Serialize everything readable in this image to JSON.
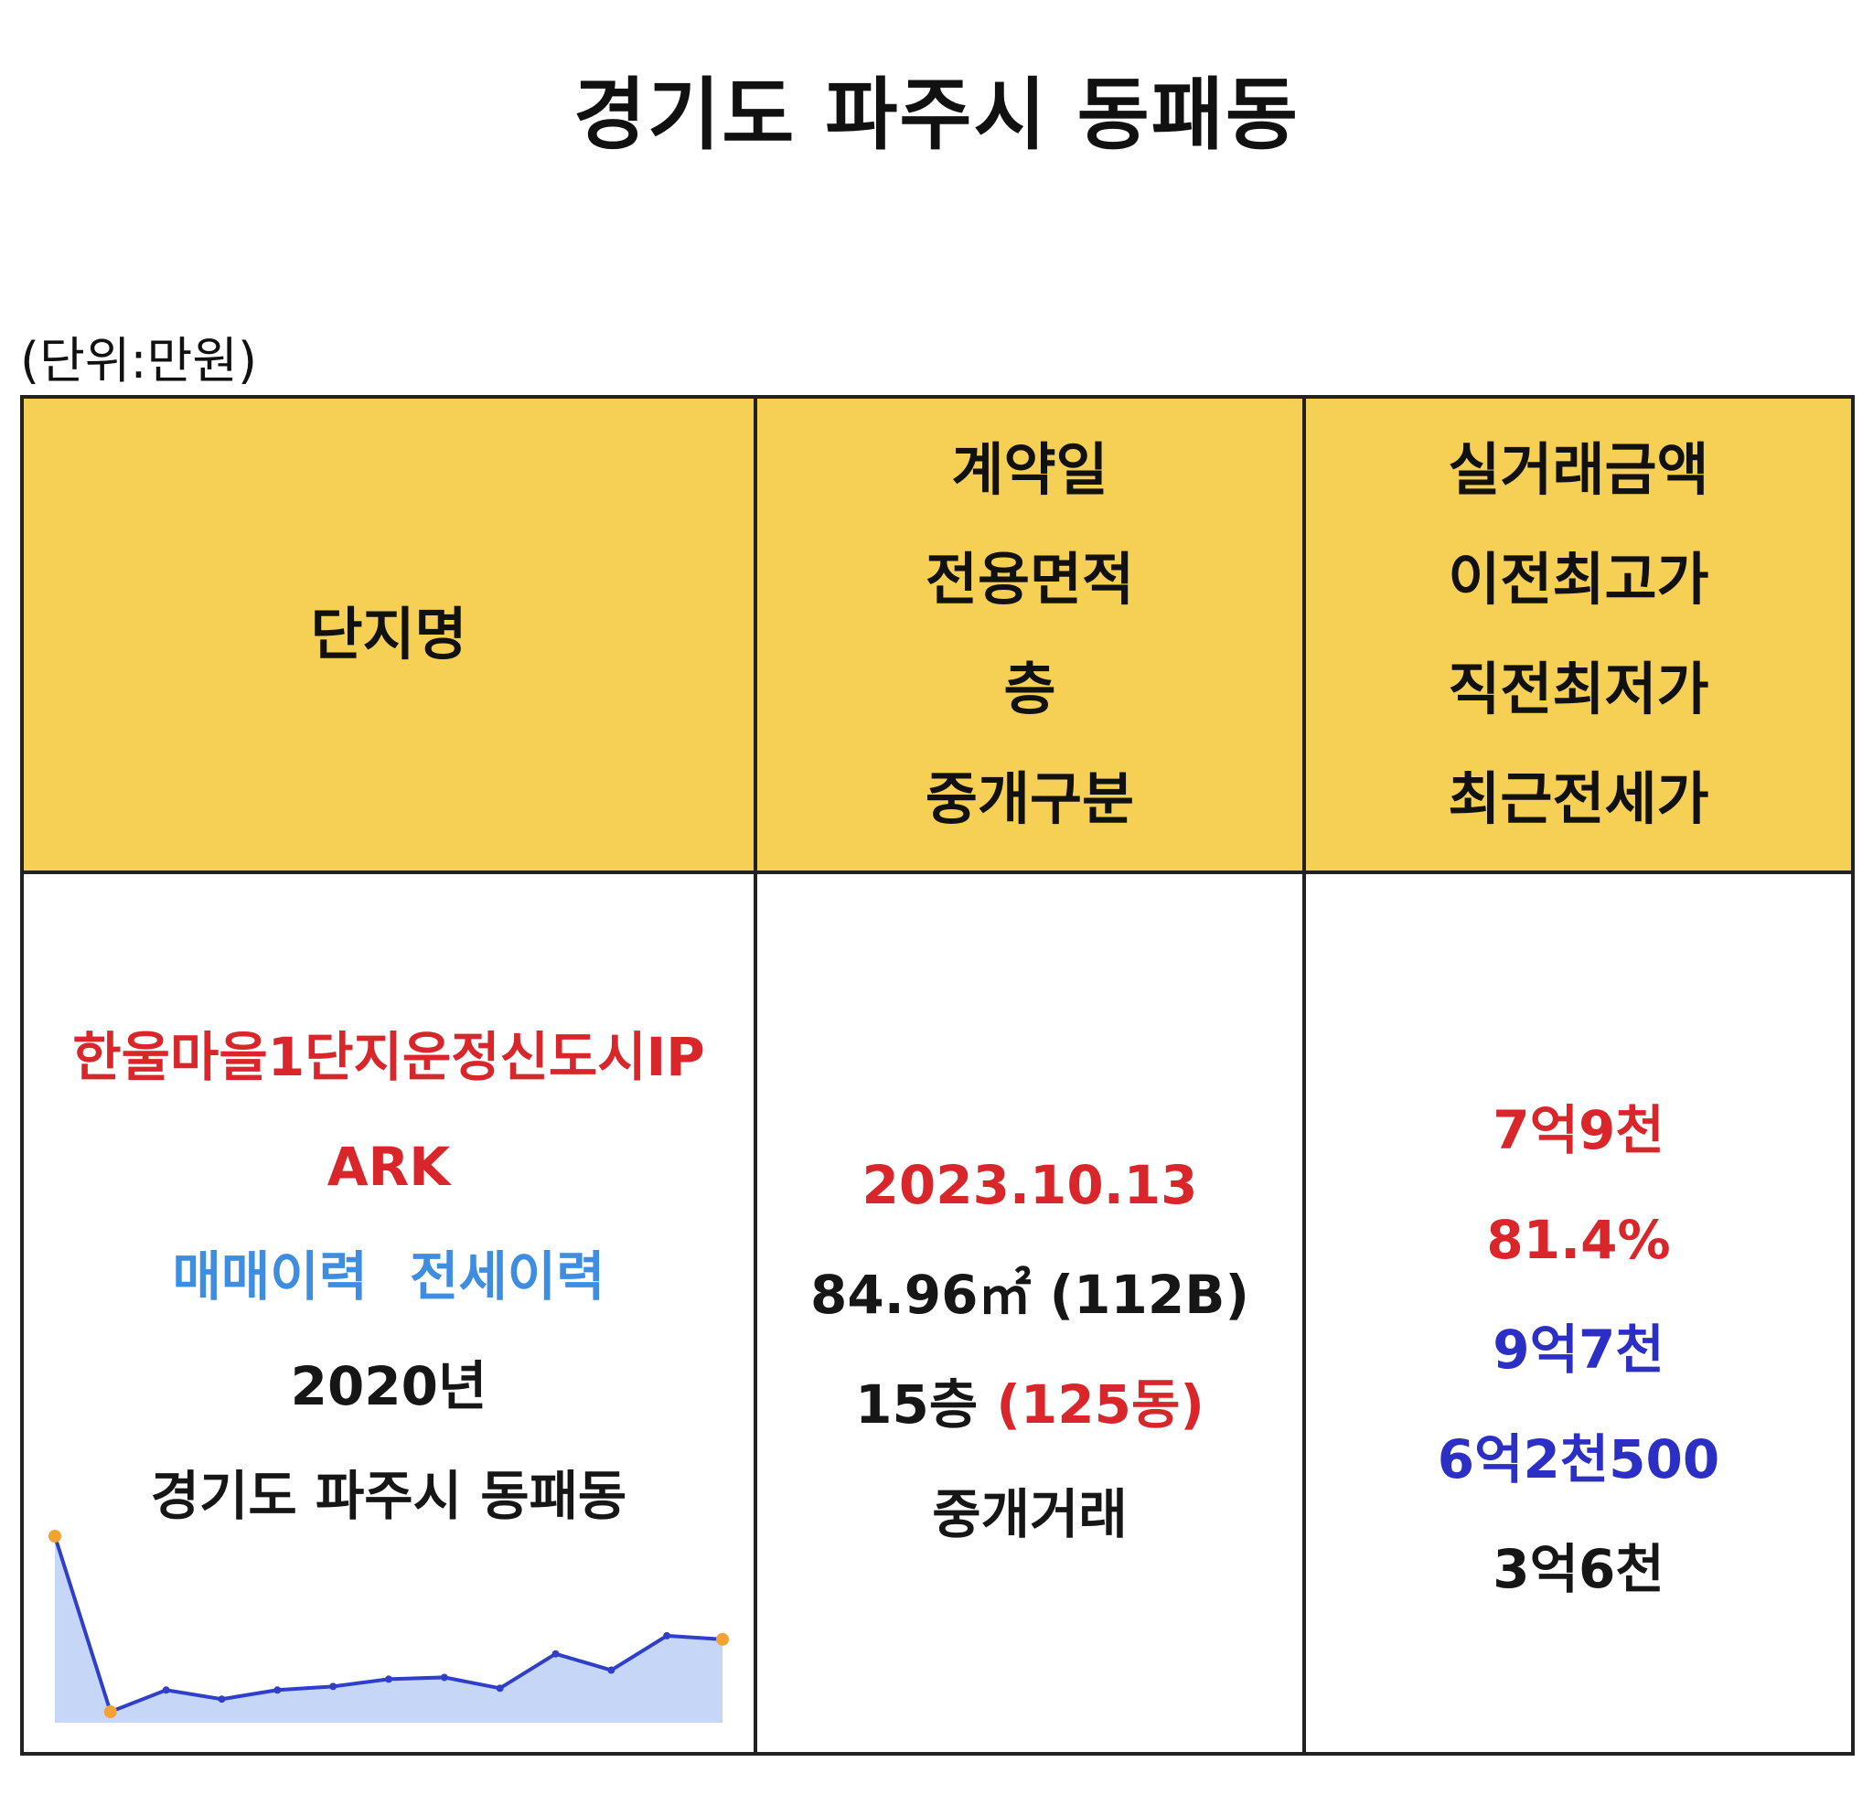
{
  "page": {
    "title": "경기도 파주시 동패동",
    "unit_note": "(단위:만원)"
  },
  "table": {
    "headers": {
      "col1": [
        "단지명"
      ],
      "col2": [
        "계약일",
        "전용면적",
        "층",
        "중개구분"
      ],
      "col3": [
        "실거래금액",
        "이전최고가",
        "직전최저가",
        "최근전세가"
      ]
    },
    "row": {
      "complex_name_line1": "한울마을1단지운정신도시IP",
      "complex_name_line2": "ARK",
      "sale_history_link": "매매이력",
      "jeonse_history_link": "전세이력",
      "built_year": "2020년",
      "location": "경기도 파주시 동패동",
      "contract_date": "2023.10.13",
      "area": "84.96㎡ (112B)",
      "floor": "15층",
      "building": "(125동)",
      "broker_type": "중개거래",
      "price": "7억9천",
      "ratio": "81.4%",
      "prev_high": "9억7천",
      "prev_low": "6억2천500",
      "recent_jeonse": "3억6천"
    }
  },
  "chart_data": {
    "type": "area",
    "values": [
      10,
      0.3,
      1.5,
      1.0,
      1.5,
      1.7,
      2.1,
      2.2,
      1.6,
      3.5,
      2.6,
      4.5,
      4.3
    ],
    "highlight_points": [
      0,
      1,
      12
    ],
    "colors": {
      "line": "#2f3fc9",
      "fill": "#c6d6f7",
      "point": "#f4a234"
    }
  }
}
